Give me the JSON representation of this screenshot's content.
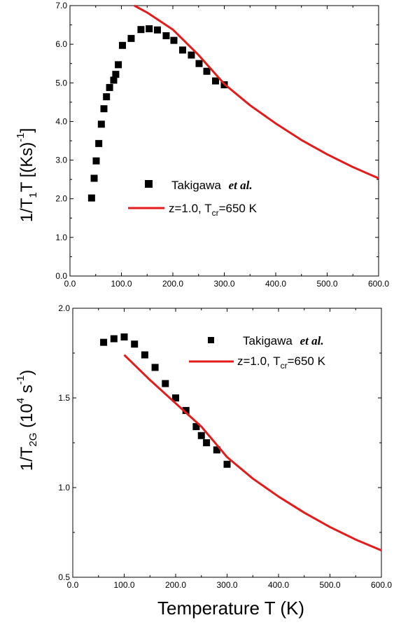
{
  "chart_data": [
    {
      "type": "scatter",
      "xlim": [
        0,
        600
      ],
      "ylim": [
        0,
        7
      ],
      "x_ticks": [
        "0.0",
        "100.0",
        "200.0",
        "300.0",
        "400.0",
        "500.0",
        "600.0"
      ],
      "y_ticks": [
        "0.0",
        "1.0",
        "2.0",
        "3.0",
        "4.0",
        "5.0",
        "6.0",
        "7.0"
      ],
      "ylabel": {
        "main": "1/T",
        "sub": "1",
        "mid": "T  [(Ks)",
        "sup": "-1",
        "end": "]"
      },
      "legend": {
        "placement": "center",
        "markers_name": "Takigawa",
        "markers_suffix": "et al.",
        "line_name": "z=1.0, T",
        "line_sub": "cr",
        "line_end": "=650 K"
      },
      "series": [
        {
          "kind": "markers",
          "color": "#000000",
          "x": [
            42,
            47,
            51,
            56,
            61,
            66,
            71,
            77,
            85,
            89,
            94,
            102,
            119,
            138,
            154,
            170,
            187,
            202,
            219,
            236,
            251,
            266,
            283,
            300
          ],
          "y": [
            2.02,
            2.53,
            2.98,
            3.43,
            3.93,
            4.33,
            4.64,
            4.88,
            5.07,
            5.22,
            5.47,
            5.97,
            6.15,
            6.38,
            6.4,
            6.37,
            6.22,
            6.1,
            5.85,
            5.72,
            5.5,
            5.3,
            5.05,
            4.95
          ]
        },
        {
          "kind": "line",
          "color": "#e31b1b",
          "x": [
            125,
            150,
            200,
            250,
            300,
            350,
            400,
            450,
            500,
            550,
            600
          ],
          "y": [
            7.0,
            6.82,
            6.38,
            5.72,
            4.97,
            4.42,
            3.95,
            3.52,
            3.15,
            2.82,
            2.53
          ]
        }
      ]
    },
    {
      "type": "scatter",
      "xlim": [
        0,
        600
      ],
      "ylim": [
        0.5,
        2.0
      ],
      "x_ticks": [
        "0.0",
        "100.0",
        "200.0",
        "300.0",
        "400.0",
        "500.0",
        "600.0"
      ],
      "y_ticks": [
        "0.5",
        "1.0",
        "1.5",
        "2.0"
      ],
      "xlabel": "Temperature T (K)",
      "ylabel": {
        "main": "1/T",
        "sub": "2G",
        "mid": " (10",
        "sup1": "4",
        "mid2": " s",
        "sup2": "-1",
        "end": ")"
      },
      "legend": {
        "placement": "top-right",
        "markers_name": "Takigawa",
        "markers_suffix": "et al.",
        "line_name": "z=1.0, T",
        "line_sub": "cr",
        "line_end": "=650 K"
      },
      "series": [
        {
          "kind": "markers",
          "color": "#000000",
          "x": [
            60,
            80,
            100,
            120,
            140,
            160,
            180,
            200,
            220,
            240,
            250,
            260,
            280,
            300
          ],
          "y": [
            1.81,
            1.83,
            1.84,
            1.8,
            1.74,
            1.67,
            1.58,
            1.5,
            1.43,
            1.34,
            1.29,
            1.25,
            1.21,
            1.13
          ]
        },
        {
          "kind": "line",
          "color": "#e31b1b",
          "x": [
            100,
            150,
            200,
            250,
            300,
            350,
            400,
            450,
            500,
            550,
            600
          ],
          "y": [
            1.74,
            1.6,
            1.47,
            1.34,
            1.17,
            1.05,
            0.95,
            0.86,
            0.78,
            0.71,
            0.65
          ]
        }
      ]
    }
  ]
}
